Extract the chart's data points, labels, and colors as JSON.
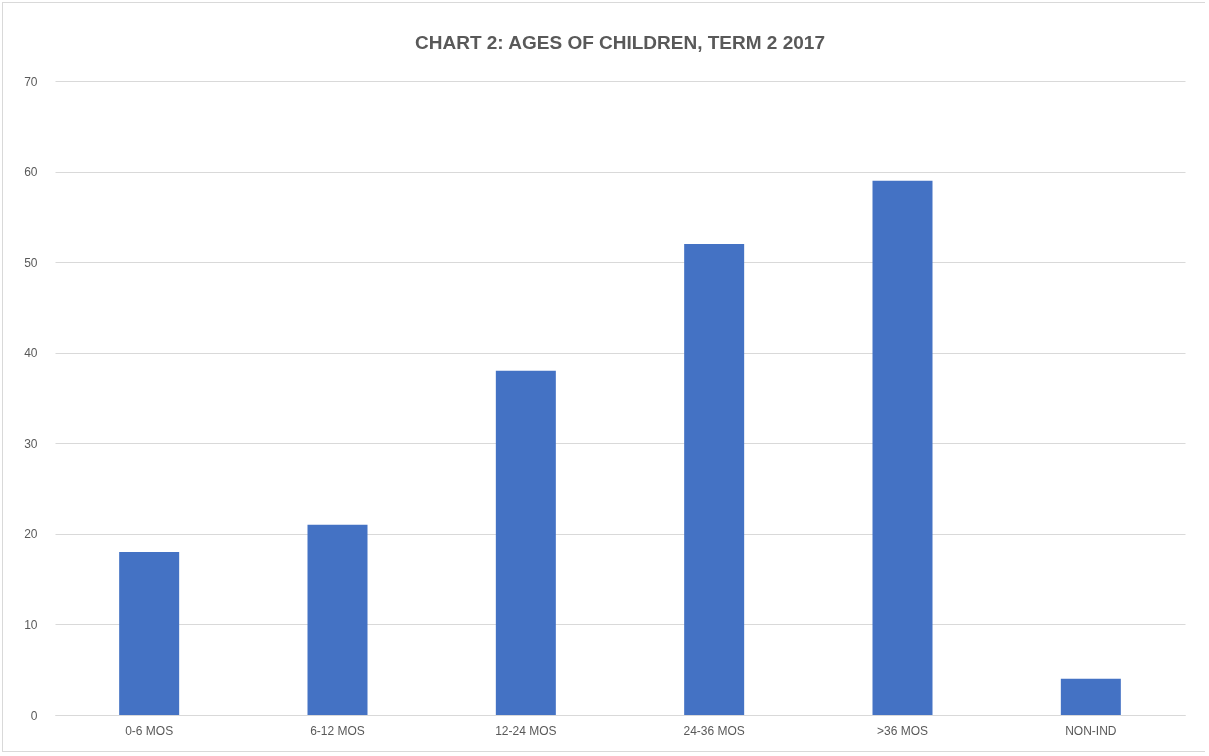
{
  "chart_data": {
    "type": "bar",
    "title": "CHART 2: AGES OF CHILDREN, TERM 2 2017",
    "categories": [
      "0-6 MOS",
      "6-12 MOS",
      "12-24 MOS",
      "24-36 MOS",
      ">36 MOS",
      "NON-IND"
    ],
    "values": [
      18,
      21,
      38,
      52,
      59,
      4
    ],
    "color": "#4472c4",
    "ylim": [
      0,
      70
    ],
    "yticks": [
      0,
      10,
      20,
      30,
      40,
      50,
      60,
      70
    ],
    "grid": "y"
  }
}
